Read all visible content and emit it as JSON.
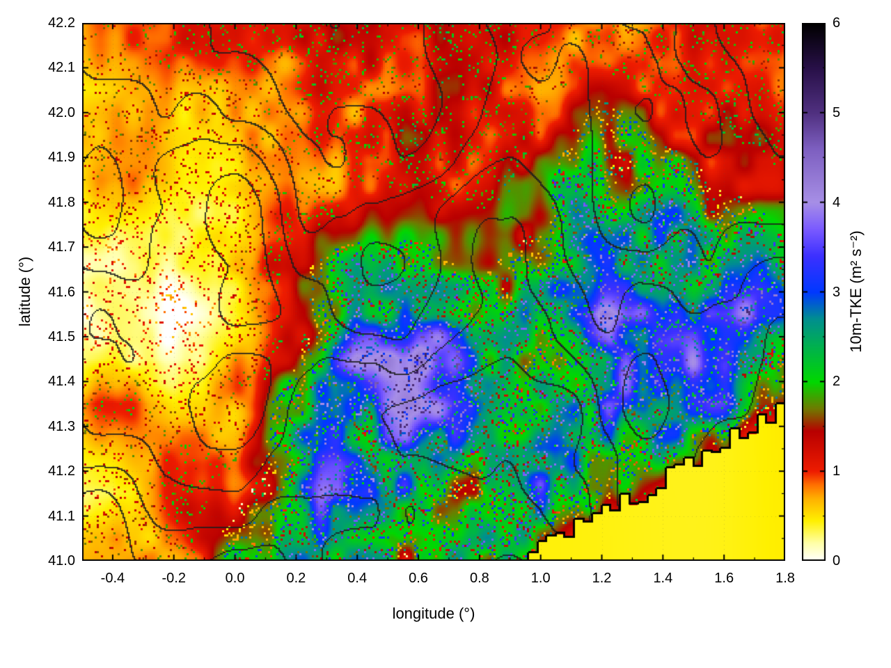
{
  "chart_data": {
    "type": "heatmap",
    "title": "",
    "xlabel": "longitude (°)",
    "ylabel": "latitude (°)",
    "xlim": [
      -0.5,
      1.8
    ],
    "ylim": [
      41.0,
      42.2
    ],
    "x_tick_labels": [
      "-0.4",
      "-0.2",
      "0.0",
      "0.2",
      "0.4",
      "0.6",
      "0.8",
      "1.0",
      "1.2",
      "1.4",
      "1.6",
      "1.8"
    ],
    "x_minor_step": 0.1,
    "y_tick_labels": [
      "41.0",
      "41.1",
      "41.2",
      "41.3",
      "41.4",
      "41.5",
      "41.6",
      "41.7",
      "41.8",
      "41.9",
      "42.0",
      "42.1",
      "42.2"
    ],
    "y_minor_step": 0.05,
    "colorbar": {
      "label": "10m-TKE (m² s⁻²)",
      "range": [
        0,
        6
      ],
      "tick_labels": [
        "0",
        "1",
        "2",
        "3",
        "4",
        "5",
        "6"
      ],
      "minor_step": 0.5,
      "palette_stops": [
        [
          0.0,
          "#ffffff"
        ],
        [
          0.2,
          "#ffffa8"
        ],
        [
          0.45,
          "#fff000"
        ],
        [
          0.7,
          "#ffb000"
        ],
        [
          0.85,
          "#ff7000"
        ],
        [
          1.0,
          "#ee1c00"
        ],
        [
          1.45,
          "#b80000"
        ],
        [
          1.7,
          "#6f7a00"
        ],
        [
          2.0,
          "#00d800"
        ],
        [
          2.4,
          "#00b050"
        ],
        [
          2.7,
          "#008f8f"
        ],
        [
          3.0,
          "#0038ff"
        ],
        [
          3.4,
          "#3c30ff"
        ],
        [
          3.7,
          "#7a5aff"
        ],
        [
          4.0,
          "#a78fe6"
        ],
        [
          4.6,
          "#7d5fc0"
        ],
        [
          5.0,
          "#503080"
        ],
        [
          5.5,
          "#281048"
        ],
        [
          6.0,
          "#000000"
        ]
      ]
    },
    "grid_values": {
      "comment_free_estimate": "coarse TKE values (m2/s2) read from the map, rows north to south",
      "lon": [
        -0.4,
        -0.2,
        0.0,
        0.2,
        0.4,
        0.6,
        0.8,
        1.0,
        1.2,
        1.4,
        1.6,
        1.8
      ],
      "lat": [
        42.15,
        42.05,
        41.95,
        41.85,
        41.75,
        41.65,
        41.55,
        41.45,
        41.35,
        41.25,
        41.15,
        41.05
      ],
      "tke": [
        [
          0.7,
          0.8,
          1.0,
          1.1,
          1.2,
          1.0,
          1.2,
          1.1,
          1.0,
          1.2,
          1.0,
          0.9
        ],
        [
          0.5,
          0.6,
          0.9,
          1.0,
          1.2,
          1.1,
          1.3,
          1.2,
          1.5,
          1.2,
          1.1,
          1.0
        ],
        [
          0.6,
          0.5,
          0.8,
          1.0,
          1.2,
          1.3,
          1.2,
          1.3,
          2.0,
          1.5,
          1.3,
          1.2
        ],
        [
          0.8,
          0.6,
          0.5,
          0.9,
          1.3,
          1.2,
          1.1,
          1.4,
          2.5,
          2.0,
          1.5,
          1.3
        ],
        [
          0.7,
          0.4,
          0.6,
          1.2,
          1.4,
          1.5,
          1.4,
          1.5,
          2.2,
          2.5,
          2.0,
          1.5
        ],
        [
          0.5,
          0.4,
          0.8,
          1.5,
          2.0,
          1.8,
          1.5,
          2.0,
          2.5,
          2.2,
          2.5,
          2.0
        ],
        [
          0.3,
          0.2,
          0.5,
          1.4,
          2.2,
          2.5,
          2.0,
          2.5,
          4.2,
          2.5,
          3.0,
          2.5
        ],
        [
          0.2,
          0.1,
          0.8,
          1.5,
          3.5,
          4.0,
          2.5,
          2.0,
          2.5,
          3.0,
          2.5,
          2.0
        ],
        [
          0.8,
          0.5,
          1.0,
          2.0,
          3.0,
          4.2,
          2.8,
          2.2,
          3.5,
          2.5,
          3.0,
          1.5
        ],
        [
          0.5,
          0.8,
          1.2,
          2.0,
          2.5,
          3.0,
          2.5,
          3.5,
          2.5,
          2.0,
          1.5,
          0.5
        ],
        [
          0.3,
          1.0,
          1.5,
          2.0,
          3.2,
          2.5,
          2.0,
          2.5,
          2.0,
          1.0,
          0.5,
          0.5
        ],
        [
          0.8,
          1.0,
          1.8,
          2.0,
          2.2,
          2.0,
          2.5,
          2.0,
          0.5,
          0.5,
          0.5,
          0.5
        ]
      ]
    },
    "coastline": {
      "start_lon": 0.93,
      "lat_at_start": 41.0,
      "slope_deg_per_deg": 0.4,
      "sea_tke": 0.45
    },
    "style": {
      "contour_color": "#1c1c1c",
      "coast_color": "#000000",
      "tick_color": "#000000",
      "background": "#ffffff"
    }
  }
}
